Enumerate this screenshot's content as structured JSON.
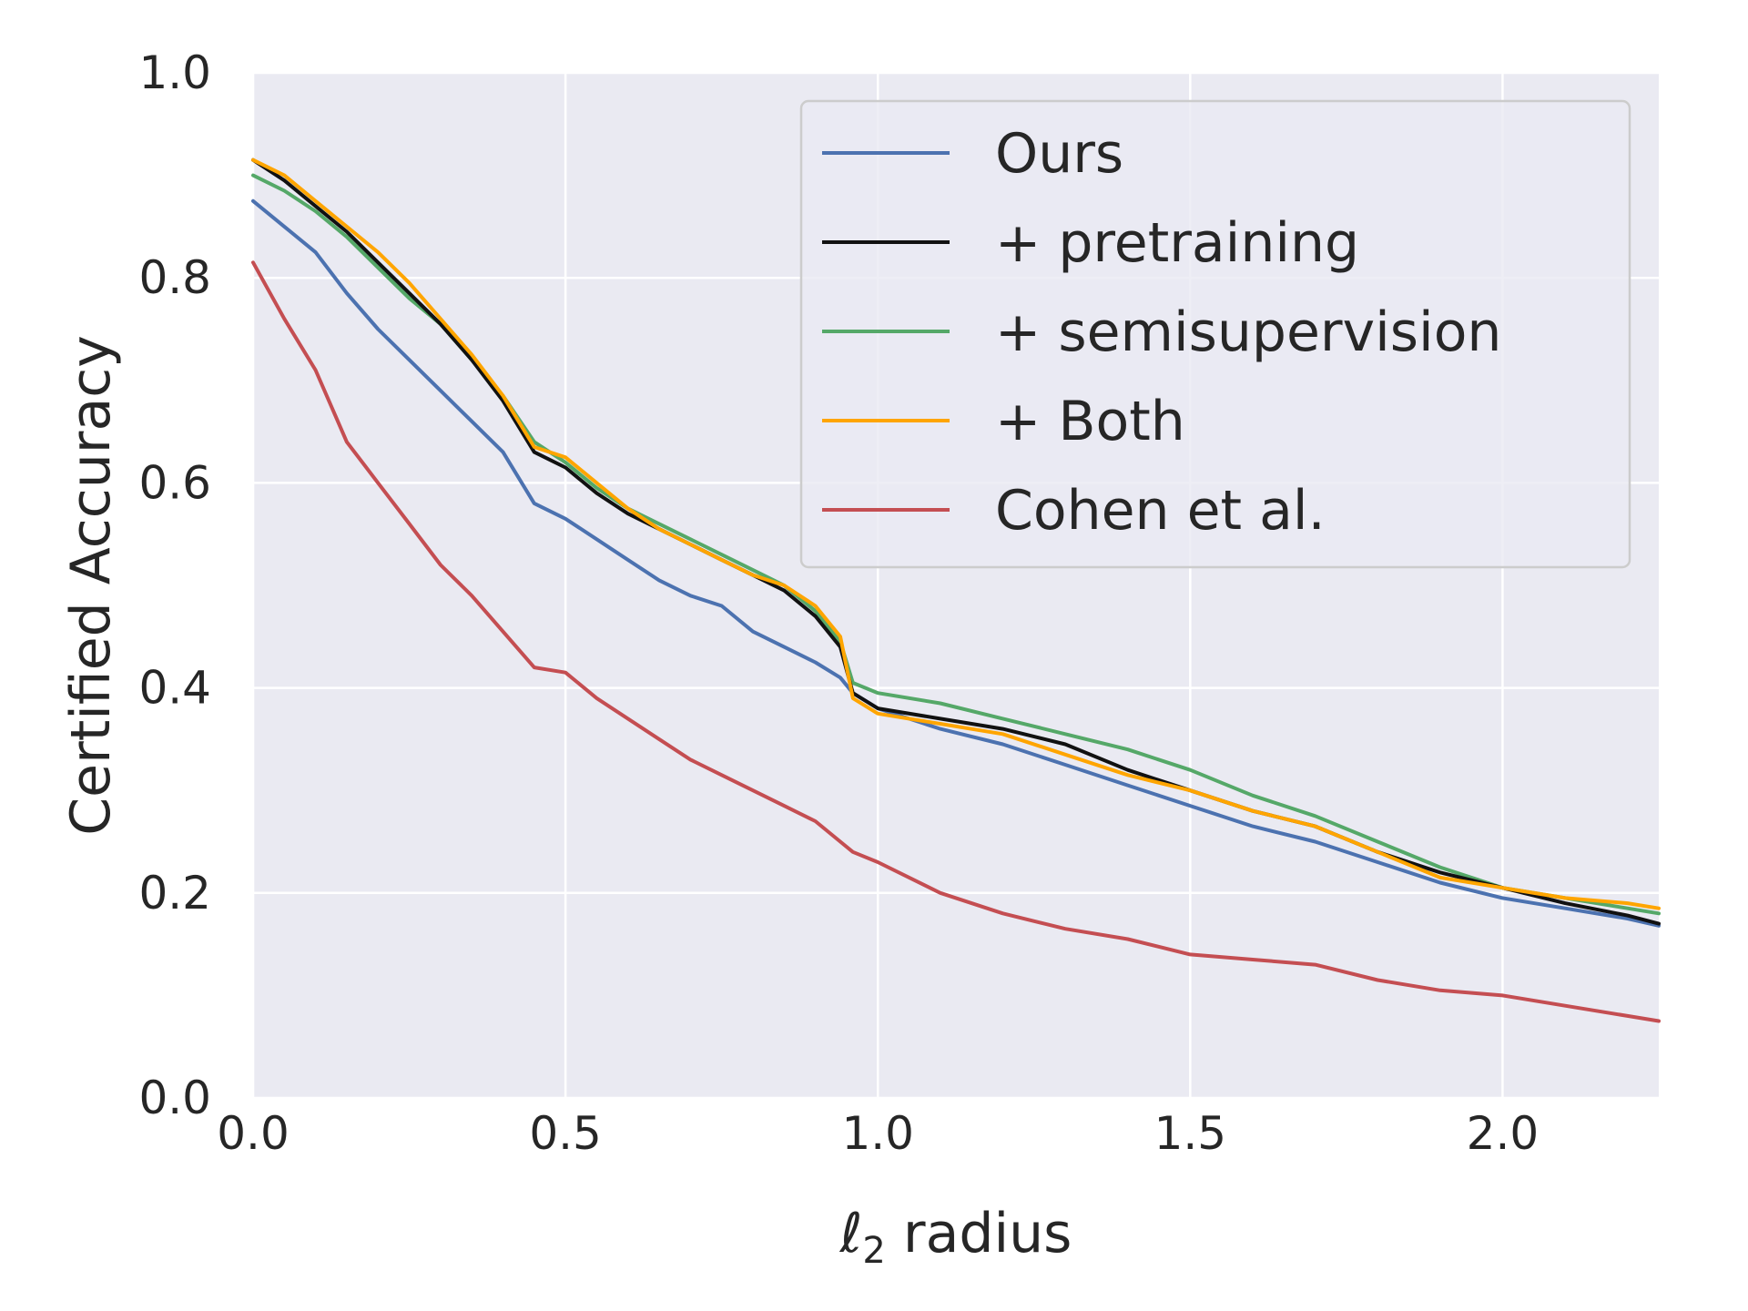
{
  "chart_data": {
    "type": "line",
    "xlabel_main": "ℓ",
    "xlabel_sub": "2",
    "xlabel_rest": " radius",
    "ylabel": "Certified Accuracy",
    "xlim": [
      0.0,
      2.25
    ],
    "ylim": [
      0.0,
      1.0
    ],
    "xticks": [
      "0.0",
      "0.5",
      "1.0",
      "1.5",
      "2.0"
    ],
    "yticks": [
      "0.0",
      "0.2",
      "0.4",
      "0.6",
      "0.8",
      "1.0"
    ],
    "grid": true,
    "background": "#EAEAF2",
    "legend_position": "top-right",
    "x": [
      0.0,
      0.05,
      0.1,
      0.15,
      0.2,
      0.25,
      0.3,
      0.35,
      0.4,
      0.45,
      0.5,
      0.55,
      0.6,
      0.65,
      0.7,
      0.75,
      0.8,
      0.85,
      0.9,
      0.94,
      0.96,
      1.0,
      1.1,
      1.2,
      1.3,
      1.4,
      1.5,
      1.6,
      1.7,
      1.8,
      1.9,
      2.0,
      2.1,
      2.2,
      2.25
    ],
    "series": [
      {
        "name": "Ours",
        "color": "#4C72B0",
        "values": [
          0.875,
          0.85,
          0.825,
          0.785,
          0.75,
          0.72,
          0.69,
          0.66,
          0.63,
          0.58,
          0.565,
          0.545,
          0.525,
          0.505,
          0.49,
          0.48,
          0.455,
          0.44,
          0.425,
          0.41,
          0.395,
          0.38,
          0.36,
          0.345,
          0.325,
          0.305,
          0.285,
          0.265,
          0.25,
          0.23,
          0.21,
          0.195,
          0.185,
          0.175,
          0.168
        ]
      },
      {
        "name": " + pretraining",
        "color": "#111111",
        "values": [
          0.915,
          0.895,
          0.87,
          0.845,
          0.815,
          0.785,
          0.755,
          0.72,
          0.68,
          0.63,
          0.615,
          0.59,
          0.57,
          0.555,
          0.54,
          0.525,
          0.51,
          0.495,
          0.47,
          0.44,
          0.395,
          0.38,
          0.37,
          0.36,
          0.345,
          0.32,
          0.3,
          0.28,
          0.265,
          0.24,
          0.22,
          0.205,
          0.19,
          0.178,
          0.17
        ]
      },
      {
        "name": " + semisupervision",
        "color": "#55A868",
        "values": [
          0.9,
          0.885,
          0.865,
          0.84,
          0.81,
          0.78,
          0.755,
          0.72,
          0.685,
          0.64,
          0.62,
          0.595,
          0.575,
          0.56,
          0.545,
          0.53,
          0.515,
          0.5,
          0.475,
          0.445,
          0.405,
          0.395,
          0.385,
          0.37,
          0.355,
          0.34,
          0.32,
          0.295,
          0.275,
          0.25,
          0.225,
          0.205,
          0.195,
          0.185,
          0.18
        ]
      },
      {
        "name": " + Both",
        "color": "#FFA500",
        "values": [
          0.915,
          0.9,
          0.875,
          0.85,
          0.825,
          0.795,
          0.76,
          0.725,
          0.685,
          0.635,
          0.625,
          0.6,
          0.575,
          0.555,
          0.54,
          0.525,
          0.51,
          0.5,
          0.48,
          0.45,
          0.39,
          0.375,
          0.365,
          0.355,
          0.335,
          0.315,
          0.3,
          0.28,
          0.265,
          0.24,
          0.215,
          0.205,
          0.195,
          0.19,
          0.185
        ]
      },
      {
        "name": "Cohen et al.",
        "color": "#C44E52",
        "values": [
          0.815,
          0.76,
          0.71,
          0.64,
          0.6,
          0.56,
          0.52,
          0.49,
          0.455,
          0.42,
          0.415,
          0.39,
          0.37,
          0.35,
          0.33,
          0.315,
          0.3,
          0.285,
          0.27,
          0.25,
          0.24,
          0.23,
          0.2,
          0.18,
          0.165,
          0.155,
          0.14,
          0.135,
          0.13,
          0.115,
          0.105,
          0.1,
          0.09,
          0.08,
          0.075
        ]
      }
    ]
  }
}
